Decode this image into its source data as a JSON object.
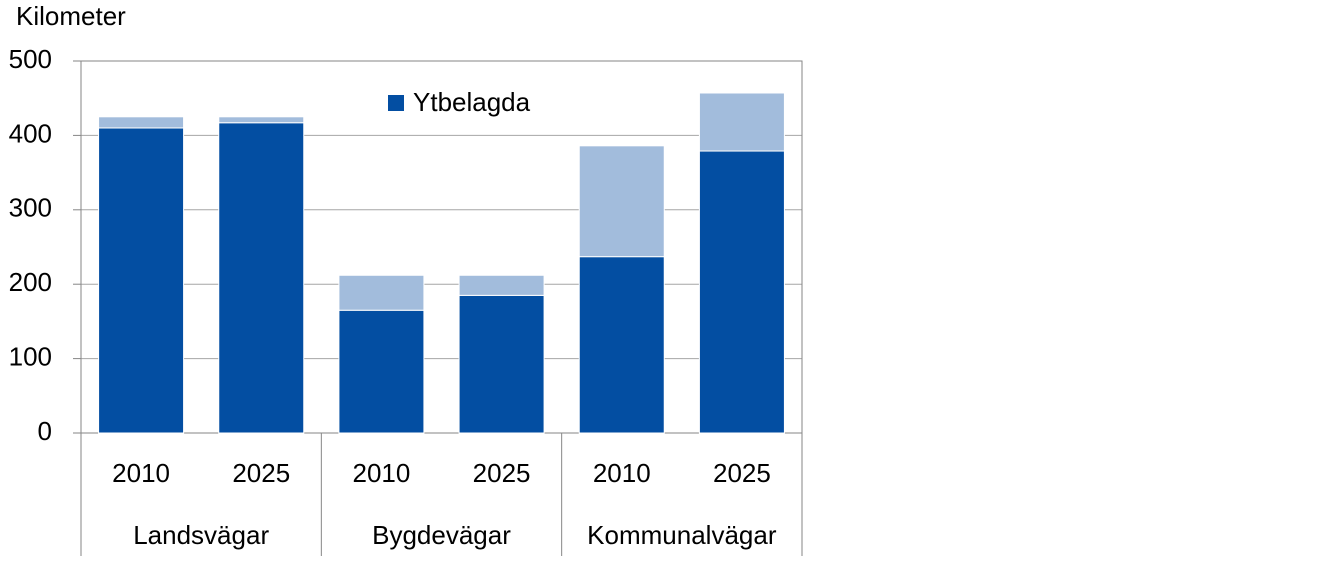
{
  "chart_data": {
    "type": "stacked-bar",
    "y_axis_title": "Kilometer",
    "categories": [
      "2010",
      "2025",
      "2010",
      "2025",
      "2010",
      "2025"
    ],
    "groups": [
      "Landsvägar",
      "Bygdevägar",
      "Kommunalvägar"
    ],
    "series": [
      {
        "name": "Ytbelagda",
        "color": "#034ea2",
        "values": [
          410,
          417,
          165,
          185,
          237,
          379
        ]
      },
      {
        "color": "#a2bcdc",
        "values": [
          15,
          8,
          47,
          27,
          149,
          78
        ]
      }
    ],
    "ylim": [
      0,
      500
    ],
    "yticks": [
      0,
      100,
      200,
      300,
      400,
      500
    ],
    "grid": true,
    "legend": "top"
  }
}
